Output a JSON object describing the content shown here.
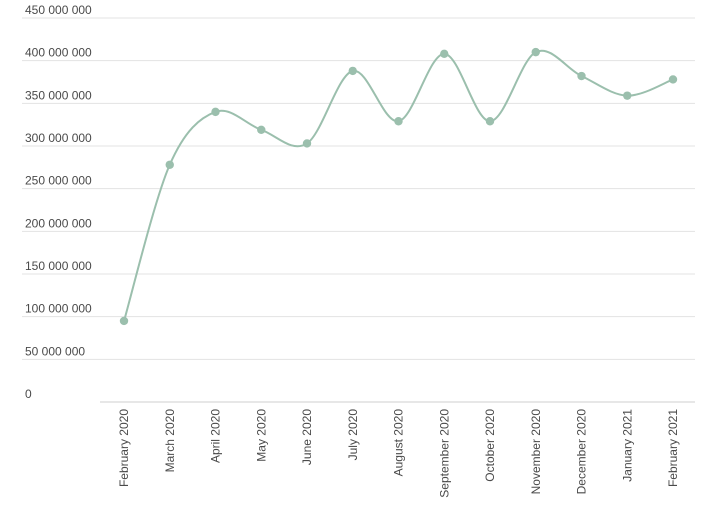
{
  "chart_data": {
    "type": "line",
    "title": "",
    "xlabel": "",
    "ylabel": "",
    "ylim": [
      0,
      450000000
    ],
    "yticks": [
      0,
      50000000,
      100000000,
      150000000,
      200000000,
      250000000,
      300000000,
      350000000,
      400000000,
      450000000
    ],
    "ytick_labels": [
      "0",
      "50 000 000",
      "100 000 000",
      "150 000 000",
      "200 000 000",
      "250 000 000",
      "300 000 000",
      "350 000 000",
      "400 000 000",
      "450 000 000"
    ],
    "categories": [
      "February 2020",
      "March 2020",
      "April 2020",
      "May 2020",
      "June 2020",
      "July 2020",
      "August 2020",
      "September 2020",
      "October 2020",
      "November 2020",
      "December 2020",
      "January 2021",
      "February 2021"
    ],
    "series": [
      {
        "values": [
          95000000,
          278000000,
          340000000,
          319000000,
          303000000,
          388000000,
          329000000,
          408000000,
          329000000,
          410000000,
          382000000,
          359000000,
          378000000
        ],
        "color": "#9bbfad",
        "smooth": true,
        "markers": true
      }
    ],
    "grid": true,
    "legend": "none"
  }
}
